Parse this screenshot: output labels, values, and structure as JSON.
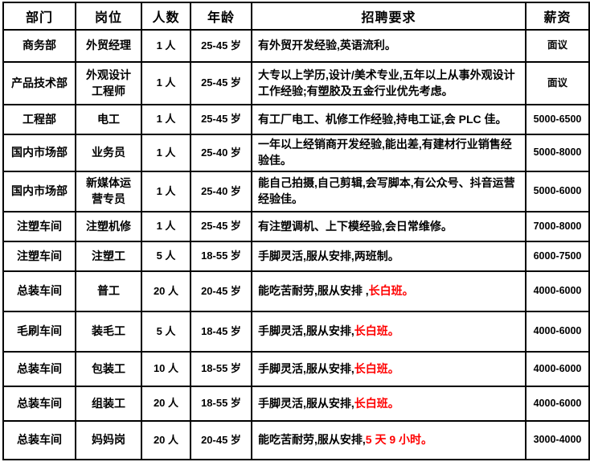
{
  "table": {
    "colors": {
      "border": "#000000",
      "text": "#000000",
      "highlight_red": "#ff0000",
      "background": "#ffffff"
    },
    "headers": [
      {
        "key": "department",
        "label": "部门"
      },
      {
        "key": "position",
        "label": "岗位"
      },
      {
        "key": "headcount",
        "label": "人数"
      },
      {
        "key": "age",
        "label": "年龄"
      },
      {
        "key": "requirement",
        "label": "招聘要求"
      },
      {
        "key": "salary",
        "label": "薪资"
      }
    ],
    "rows": [
      {
        "department": "商务部",
        "position": "外贸经理",
        "headcount": "1 人",
        "age": "25-45 岁",
        "requirement": [
          {
            "text": "有外贸开发经验,英语流利。",
            "color": "black"
          }
        ],
        "salary": "面议"
      },
      {
        "department": "产品技术部",
        "position": "外观设计\n工程师",
        "headcount": "1 人",
        "age": "25-45 岁",
        "requirement": [
          {
            "text": "大专以上学历,设计/美术专业,五年以上从事外观设计工作经验;有塑胶及五金行业优先考虑。",
            "color": "black"
          }
        ],
        "salary": "面议"
      },
      {
        "department": "工程部",
        "position": "电工",
        "headcount": "1 人",
        "age": "25-45 岁",
        "requirement": [
          {
            "text": "有工厂电工、机修工作经验,持电工证,会 PLC 佳。",
            "color": "black"
          }
        ],
        "salary": "5000-6500"
      },
      {
        "department": "国内市场部",
        "position": "业务员",
        "headcount": "1 人",
        "age": "25-40 岁",
        "requirement": [
          {
            "text": "一年以上经销商开发经验,能出差,有建材行业销售经验佳。",
            "color": "black"
          }
        ],
        "salary": "5000-8000"
      },
      {
        "department": "国内市场部",
        "position": "新媒体运\n营专员",
        "headcount": "1 人",
        "age": "25-40 岁",
        "requirement": [
          {
            "text": "能自己拍摄,自己剪辑,会写脚本,有公众号、抖音运营经验佳。",
            "color": "black"
          }
        ],
        "salary": "5000-6000"
      },
      {
        "department": "注塑车间",
        "position": "注塑机修",
        "headcount": "1 人",
        "age": "25-45 岁",
        "requirement": [
          {
            "text": "有注塑调机、上下模经验,会日常维修。",
            "color": "black"
          }
        ],
        "salary": "7000-8000"
      },
      {
        "department": "注塑车间",
        "position": "注塑工",
        "headcount": "5 人",
        "age": "18-55 岁",
        "requirement": [
          {
            "text": "手脚灵活,服从安排,两班制。",
            "color": "black"
          }
        ],
        "salary": "6000-7500"
      },
      {
        "department": "总装车间",
        "position": "普工",
        "headcount": "20 人",
        "age": "20-45 岁",
        "requirement": [
          {
            "text": "能吃苦耐劳,服从安排 ,",
            "color": "black"
          },
          {
            "text": "长白班。",
            "color": "red"
          }
        ],
        "salary": "4000-6000"
      },
      {
        "department": "毛刷车间",
        "position": "装毛工",
        "headcount": "5 人",
        "age": "18-45 岁",
        "requirement": [
          {
            "text": "手脚灵活,服从安排,",
            "color": "black"
          },
          {
            "text": "长白班。",
            "color": "red"
          }
        ],
        "salary": "4000-6000"
      },
      {
        "department": "总装车间",
        "position": "包装工",
        "headcount": "10 人",
        "age": "18-55 岁",
        "requirement": [
          {
            "text": "手脚灵活,服从安排,",
            "color": "black"
          },
          {
            "text": "长白班。",
            "color": "red"
          }
        ],
        "salary": "4000-6000"
      },
      {
        "department": "总装车间",
        "position": "组装工",
        "headcount": "20 人",
        "age": "18-55 岁",
        "requirement": [
          {
            "text": "手脚灵活,服从安排,",
            "color": "black"
          },
          {
            "text": "长白班。",
            "color": "red"
          }
        ],
        "salary": "4000-6000"
      },
      {
        "department": "总装车间",
        "position": "妈妈岗",
        "headcount": "20 人",
        "age": "20-45 岁",
        "requirement": [
          {
            "text": "能吃苦耐劳,服从安排,",
            "color": "black"
          },
          {
            "text": "5 天 9 小时。",
            "color": "red"
          }
        ],
        "salary": "3000-4000"
      }
    ]
  }
}
